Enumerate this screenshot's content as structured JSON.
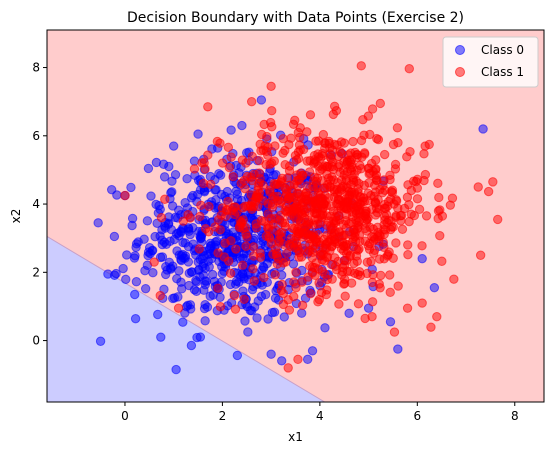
{
  "chart_data": {
    "type": "scatter",
    "title": "Decision Boundary with Data Points (Exercise 2)",
    "xlabel": "x1",
    "ylabel": "x2",
    "xlim": [
      -1.6,
      8.6
    ],
    "ylim": [
      -1.8,
      9.1
    ],
    "xticks": [
      "0",
      "2",
      "4",
      "6",
      "8"
    ],
    "yticks": [
      "0",
      "2",
      "4",
      "6",
      "8"
    ],
    "grid": false,
    "legend_position": "top-right",
    "regions": [
      {
        "class": "Class 0",
        "color": "#ccccff"
      },
      {
        "class": "Class 1",
        "color": "#ffcccc"
      }
    ],
    "decision_boundary": [
      [
        -1.6,
        3.05
      ],
      [
        4.1,
        -1.8
      ]
    ],
    "series": [
      {
        "name": "Class 0",
        "color": "#0000ff",
        "center": [
          2.3,
          3.0
        ],
        "spread": [
          1.0,
          1.25
        ],
        "count": 640,
        "points": [
          [
            -0.55,
            3.45
          ],
          [
            -0.5,
            -0.02
          ],
          [
            -0.35,
            1.95
          ],
          [
            0.0,
            4.25
          ],
          [
            0.2,
            1.35
          ],
          [
            0.8,
            1.5
          ],
          [
            0.9,
            5.1
          ],
          [
            1.05,
            -0.85
          ],
          [
            1.0,
            5.7
          ],
          [
            1.5,
            6.05
          ],
          [
            2.4,
            6.3
          ],
          [
            2.8,
            7.05
          ],
          [
            3.0,
            -0.4
          ],
          [
            3.75,
            -0.55
          ],
          [
            3.85,
            -0.3
          ],
          [
            5.45,
            0.55
          ],
          [
            5.6,
            -0.25
          ],
          [
            7.35,
            6.2
          ],
          [
            6.1,
            2.4
          ],
          [
            6.35,
            1.55
          ],
          [
            5.0,
            0.95
          ],
          [
            4.6,
            0.8
          ]
        ]
      },
      {
        "name": "Class 1",
        "color": "#ff0000",
        "center": [
          4.1,
          3.85
        ],
        "spread": [
          1.05,
          1.2
        ],
        "count": 850,
        "points": [
          [
            0.0,
            4.25
          ],
          [
            3.0,
            7.45
          ],
          [
            4.85,
            8.05
          ],
          [
            7.25,
            4.5
          ],
          [
            7.55,
            4.65
          ],
          [
            7.65,
            3.55
          ],
          [
            7.3,
            2.5
          ],
          [
            6.75,
            1.8
          ],
          [
            6.4,
            0.7
          ],
          [
            6.1,
            1.1
          ],
          [
            3.55,
            -0.55
          ],
          [
            3.35,
            -0.8
          ],
          [
            5.8,
            0.95
          ],
          [
            2.6,
            7.0
          ],
          [
            1.7,
            6.85
          ],
          [
            0.75,
            3.6
          ],
          [
            0.6,
            2.3
          ],
          [
            1.1,
            0.95
          ]
        ]
      }
    ]
  }
}
